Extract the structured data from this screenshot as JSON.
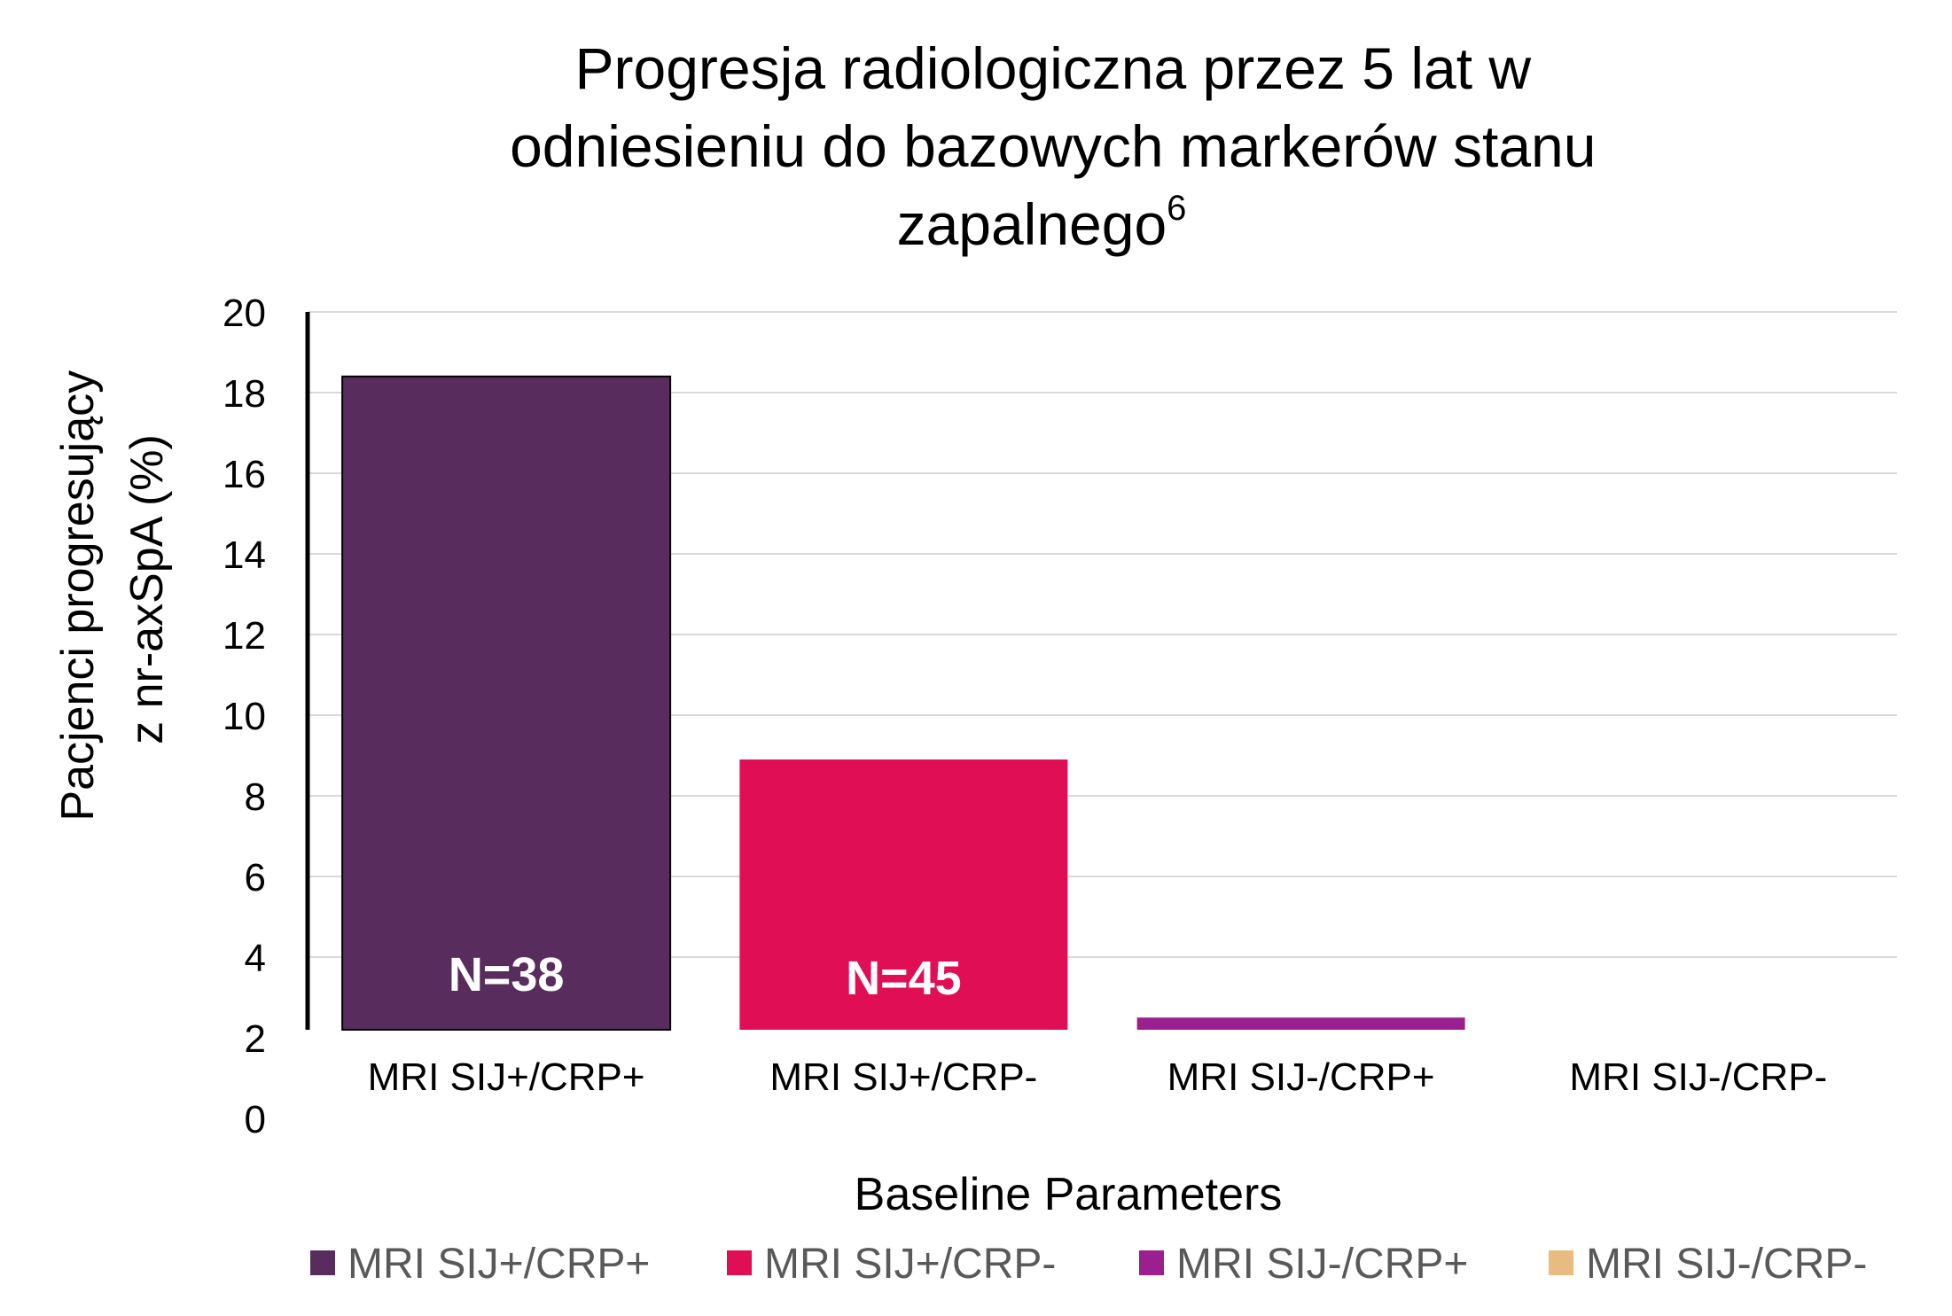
{
  "chart_data": {
    "type": "bar",
    "title_lines": [
      "Progresja radiologiczna przez 5 lat w",
      "odniesieniu do bazowych markerów stanu",
      "zapalnego"
    ],
    "title_superscript": "6",
    "ylabel_lines": [
      "Pacjenci progresujący",
      "z  nr-axSpA (%)"
    ],
    "xlabel": "Baseline Parameters",
    "ylim": [
      0,
      20
    ],
    "yticks": [
      "0",
      "2",
      "4",
      "6",
      "8",
      "10",
      "12",
      "14",
      "16",
      "18",
      "20"
    ],
    "categories": [
      "MRI SIJ+/CRP+",
      "MRI SIJ+/CRP-",
      "MRI SIJ-/CRP+",
      "MRI SIJ-/CRP-"
    ],
    "values": [
      18.4,
      8.9,
      2.5,
      0
    ],
    "data_labels": [
      "N=38",
      "N=45",
      "",
      ""
    ],
    "colors": [
      "#582d5e",
      "#e00e55",
      "#9b1f8e",
      "#e9bb80"
    ],
    "grid": true,
    "legend_position": "bottom",
    "legend": [
      "MRI SIJ+/CRP+",
      "MRI SIJ+/CRP-",
      "MRI SIJ-/CRP+",
      "MRI SIJ-/CRP-"
    ]
  }
}
